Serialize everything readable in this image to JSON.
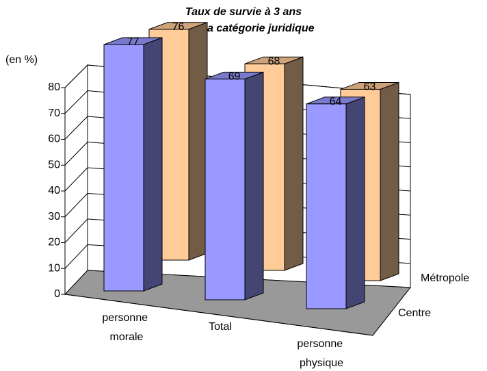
{
  "chart_data": {
    "type": "bar3d",
    "title": [
      "Taux de survie à 3 ans",
      "selon la catégorie juridique"
    ],
    "y_label": "(en %)",
    "categories": [
      "personne morale",
      "Total",
      "personne physique"
    ],
    "series": [
      {
        "name": "Centre",
        "color": "#9999ff",
        "values": [
          77,
          69,
          64
        ]
      },
      {
        "name": "Métropole",
        "color": "#ffcc99",
        "values": [
          76,
          68,
          63
        ]
      }
    ],
    "ylim": [
      0,
      80
    ],
    "yticks": [
      0,
      10,
      20,
      30,
      40,
      50,
      60,
      70,
      80
    ],
    "grid": true
  }
}
